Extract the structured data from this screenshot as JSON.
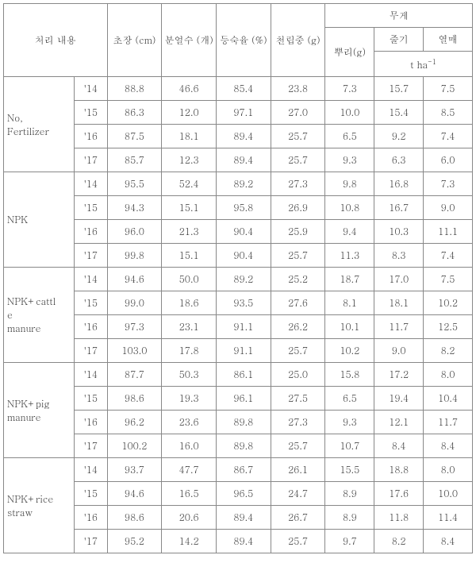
{
  "headers": {
    "treatment": "처리 내용",
    "height": "초장\n(cm)",
    "tillers": "분얼수\n(개)",
    "maturity": "등숙율\n(%)",
    "grainwt": "천립중\n(g)",
    "weight_group": "무게",
    "root": "뿌리(g)",
    "stem": "줄기",
    "fruit": "열매",
    "unit": "t ha⁻¹"
  },
  "groups": [
    {
      "name": "No,\nFertilizer",
      "rows": [
        {
          "year": "'14",
          "height": "88.8",
          "tillers": "46.6",
          "maturity": "85.4",
          "grainwt": "23.8",
          "root": "7.3",
          "stem": "15.7",
          "fruit": "7.5"
        },
        {
          "year": "'15",
          "height": "86.3",
          "tillers": "12.0",
          "maturity": "97.1",
          "grainwt": "27.0",
          "root": "10.0",
          "stem": "15.4",
          "fruit": "8.5"
        },
        {
          "year": "'16",
          "height": "87.5",
          "tillers": "18.1",
          "maturity": "89.4",
          "grainwt": "25.7",
          "root": "6.5",
          "stem": "9.2",
          "fruit": "7.4"
        },
        {
          "year": "'17",
          "height": "85.7",
          "tillers": "12.3",
          "maturity": "89.4",
          "grainwt": "25.7",
          "root": "9.3",
          "stem": "6.3",
          "fruit": "6.0"
        }
      ]
    },
    {
      "name": "NPK",
      "rows": [
        {
          "year": "'14",
          "height": "95.5",
          "tillers": "52.4",
          "maturity": "89.2",
          "grainwt": "27.3",
          "root": "9.8",
          "stem": "16.8",
          "fruit": "7.3"
        },
        {
          "year": "'15",
          "height": "94.3",
          "tillers": "15.1",
          "maturity": "95.8",
          "grainwt": "26.9",
          "root": "10.8",
          "stem": "16.7",
          "fruit": "9.0"
        },
        {
          "year": "'16",
          "height": "96.0",
          "tillers": "21.3",
          "maturity": "90.4",
          "grainwt": "25.9",
          "root": "9.4",
          "stem": "10.3",
          "fruit": "11.1"
        },
        {
          "year": "'17",
          "height": "99.8",
          "tillers": "15.1",
          "maturity": "90.4",
          "grainwt": "25.7",
          "root": "11.3",
          "stem": "8.3",
          "fruit": "7.4"
        }
      ]
    },
    {
      "name": "NPK+cattl\ne\nmanure",
      "rows": [
        {
          "year": "'14",
          "height": "94.6",
          "tillers": "50.0",
          "maturity": "89.2",
          "grainwt": "25.2",
          "root": "18.7",
          "stem": "17.0",
          "fruit": "7.5"
        },
        {
          "year": "'15",
          "height": "99.0",
          "tillers": "18.6",
          "maturity": "93.5",
          "grainwt": "27.6",
          "root": "8.1",
          "stem": "18.1",
          "fruit": "10.2"
        },
        {
          "year": "'16",
          "height": "97.3",
          "tillers": "23.1",
          "maturity": "91.1",
          "grainwt": "26.2",
          "root": "10.1",
          "stem": "11.7",
          "fruit": "12.5"
        },
        {
          "year": "'17",
          "height": "103.0",
          "tillers": "17.8",
          "maturity": "91.1",
          "grainwt": "25.7",
          "root": "10.2",
          "stem": "9.0",
          "fruit": "8.2"
        }
      ]
    },
    {
      "name": "NPK+pig\nmanure",
      "rows": [
        {
          "year": "'14",
          "height": "87.7",
          "tillers": "50.3",
          "maturity": "86.1",
          "grainwt": "25.0",
          "root": "15.8",
          "stem": "17.2",
          "fruit": "8.0"
        },
        {
          "year": "'15",
          "height": "98.6",
          "tillers": "19.3",
          "maturity": "96.1",
          "grainwt": "27.5",
          "root": "6.5",
          "stem": "19.4",
          "fruit": "10.4"
        },
        {
          "year": "'16",
          "height": "96.2",
          "tillers": "23.6",
          "maturity": "89.8",
          "grainwt": "27.3",
          "root": "9.3",
          "stem": "12.1",
          "fruit": "11.7"
        },
        {
          "year": "'17",
          "height": "100.2",
          "tillers": "16.0",
          "maturity": "89.8",
          "grainwt": "25.7",
          "root": "10.7",
          "stem": "8.4",
          "fruit": "8.4"
        }
      ]
    },
    {
      "name": "NPK+rice\nstraw",
      "rows": [
        {
          "year": "'14",
          "height": "93.7",
          "tillers": "47.7",
          "maturity": "86.7",
          "grainwt": "26.1",
          "root": "15.5",
          "stem": "18.8",
          "fruit": "8.0"
        },
        {
          "year": "'15",
          "height": "94.6",
          "tillers": "16.5",
          "maturity": "96.5",
          "grainwt": "24.7",
          "root": "8.9",
          "stem": "17.6",
          "fruit": "10.0"
        },
        {
          "year": "'16",
          "height": "98.6",
          "tillers": "20.6",
          "maturity": "89.4",
          "grainwt": "26.7",
          "root": "8.9",
          "stem": "11.8",
          "fruit": "11.4"
        },
        {
          "year": "'17",
          "height": "95.2",
          "tillers": "14.2",
          "maturity": "89.4",
          "grainwt": "25.7",
          "root": "9.7",
          "stem": "8.2",
          "fruit": "8.4"
        }
      ]
    }
  ]
}
